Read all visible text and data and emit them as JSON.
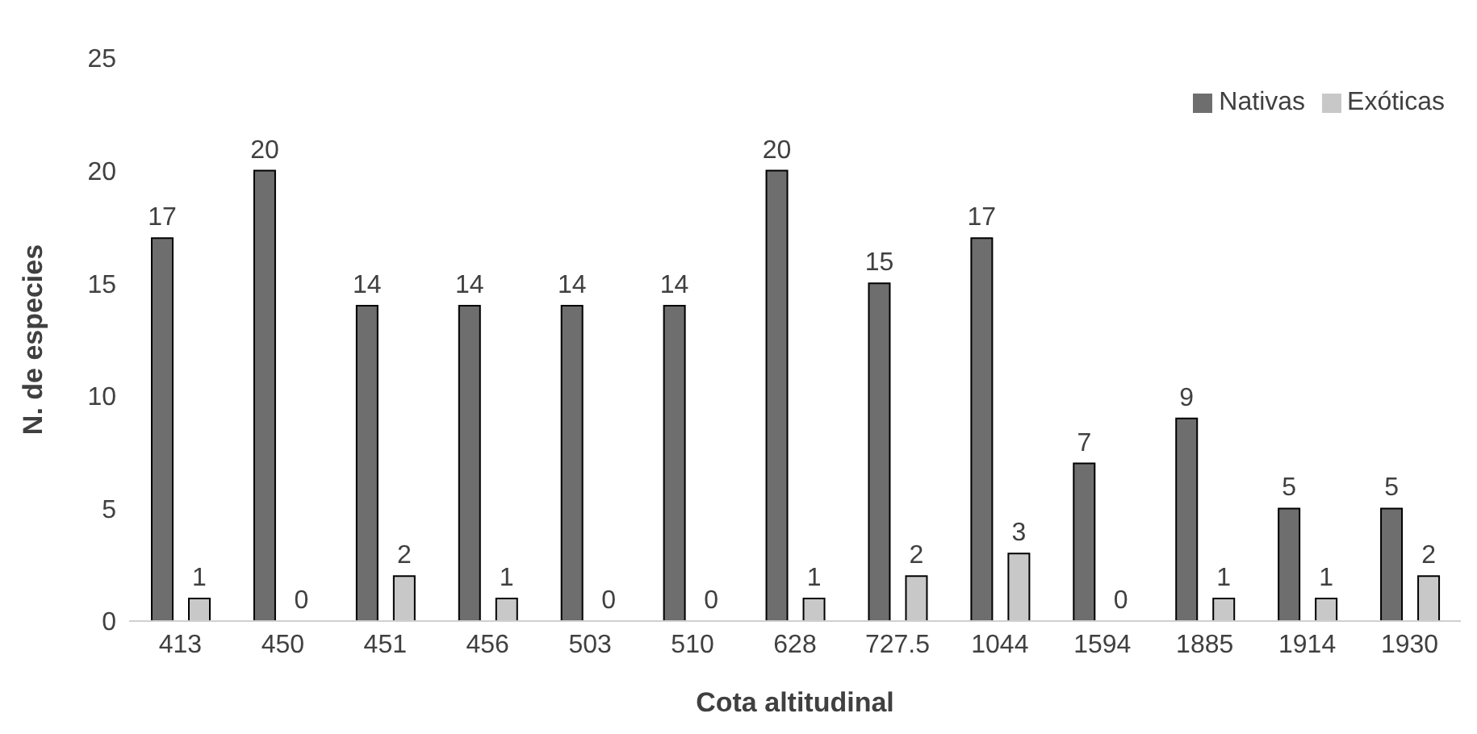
{
  "chart_data": {
    "type": "bar",
    "xlabel": "Cota altitudinal",
    "ylabel": "N. de especies",
    "categories": [
      "413",
      "450",
      "451",
      "456",
      "503",
      "510",
      "628",
      "727.5",
      "1044",
      "1594",
      "1885",
      "1914",
      "1930"
    ],
    "series": [
      {
        "name": "Nativas",
        "color": "#6e6e6e",
        "values": [
          17,
          20,
          14,
          14,
          14,
          14,
          20,
          15,
          17,
          7,
          9,
          5,
          5
        ]
      },
      {
        "name": "Exóticas",
        "color": "#c8c8c8",
        "values": [
          1,
          0,
          2,
          1,
          0,
          0,
          1,
          2,
          3,
          0,
          1,
          1,
          2
        ]
      }
    ],
    "ylim": [
      0,
      25
    ],
    "yticks": [
      0,
      5,
      10,
      15,
      20,
      25
    ],
    "grid": false,
    "legend": "top right",
    "data_labels": true
  }
}
